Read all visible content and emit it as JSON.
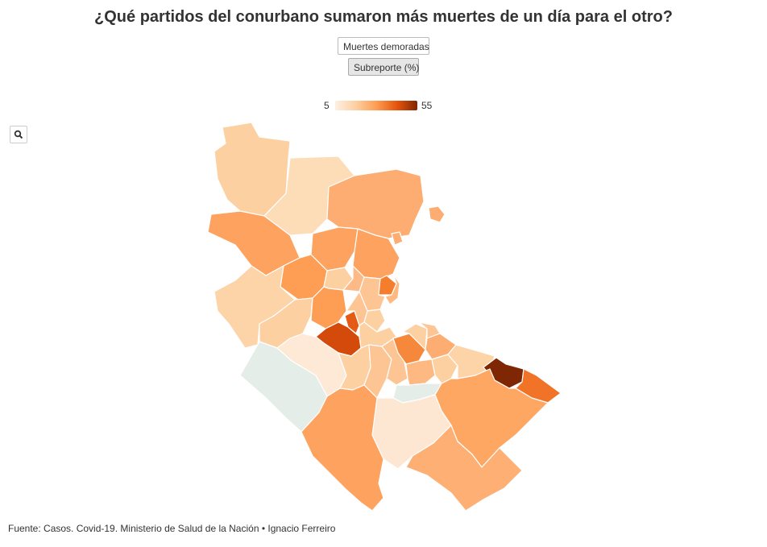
{
  "title": "¿Qué partidos del conurbano sumaron más muertes de un día para el otro?",
  "buttons": {
    "muertes": "Muertes demoradas",
    "subreporte": "Subreporte (%)"
  },
  "legend": {
    "min": "5",
    "max": "55"
  },
  "colors": {
    "no_data": "#e5ede8",
    "scale": [
      "#fdf0e2",
      "#fdd0a2",
      "#fd9e54",
      "#e6550d",
      "#7f2704"
    ]
  },
  "icons": {
    "zoom": "search-icon"
  },
  "source": "Fuente: Casos. Covid-19. Ministerio de Salud de la Nación • Ignacio Ferreiro"
}
